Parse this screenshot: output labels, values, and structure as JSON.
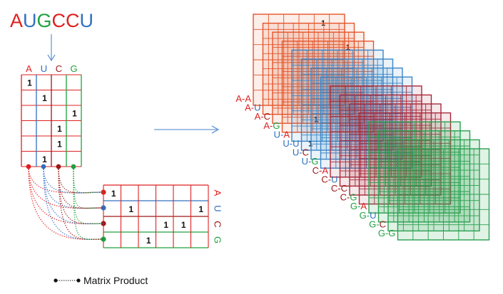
{
  "sequence": [
    {
      "ch": "A",
      "color": "#e02020"
    },
    {
      "ch": "U",
      "color": "#3070c0"
    },
    {
      "ch": "G",
      "color": "#20a040"
    },
    {
      "ch": "C",
      "color": "#e02020"
    },
    {
      "ch": "C",
      "color": "#e02020"
    },
    {
      "ch": "U",
      "color": "#3070c0"
    }
  ],
  "nucleotides": [
    {
      "label": "A",
      "color": "#e02020"
    },
    {
      "label": "U",
      "color": "#3070c0"
    },
    {
      "label": "C",
      "color": "#a01818"
    },
    {
      "label": "G",
      "color": "#20a040"
    }
  ],
  "one_hot_value": "1",
  "left_matrix_rows": [
    0,
    1,
    3,
    2,
    2,
    1
  ],
  "pair_labels": [
    {
      "text": "A-A",
      "a": "A",
      "b": "A"
    },
    {
      "text": "A-U",
      "a": "A",
      "b": "U"
    },
    {
      "text": "A-C",
      "a": "A",
      "b": "C"
    },
    {
      "text": "A-G",
      "a": "A",
      "b": "G"
    },
    {
      "text": "U-A",
      "a": "U",
      "b": "A"
    },
    {
      "text": "U-U",
      "a": "U",
      "b": "U"
    },
    {
      "text": "U-C",
      "a": "U",
      "b": "C"
    },
    {
      "text": "U-G",
      "a": "U",
      "b": "G"
    },
    {
      "text": "C-A",
      "a": "C",
      "b": "A"
    },
    {
      "text": "C-U",
      "a": "C",
      "b": "U"
    },
    {
      "text": "C-C",
      "a": "C",
      "b": "C"
    },
    {
      "text": "C-G",
      "a": "C",
      "b": "G"
    },
    {
      "text": "G-A",
      "a": "G",
      "b": "A"
    },
    {
      "text": "G-U",
      "a": "G",
      "b": "U"
    },
    {
      "text": "G-C",
      "a": "G",
      "b": "C"
    },
    {
      "text": "G-G",
      "a": "G",
      "b": "G"
    }
  ],
  "legend_label": "Matrix Product",
  "colors": {
    "A": "#e02020",
    "U": "#3070c0",
    "C": "#a01818",
    "G": "#20a040",
    "arrow": "#6a9ad8",
    "stack_A": "#e4542a",
    "stack_U": "#3a86c8",
    "stack_C": "#a8283a",
    "stack_G": "#2aa050"
  }
}
